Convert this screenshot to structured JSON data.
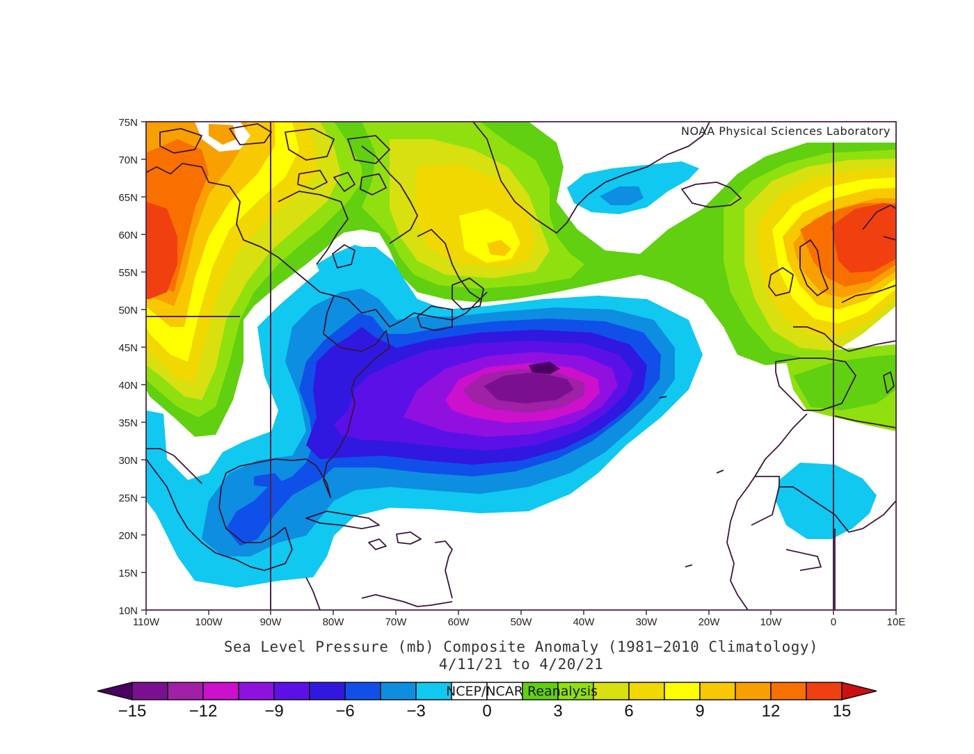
{
  "figure": {
    "credit": "NOAA Physical Sciences Laboratory",
    "title_line1": "Sea Level Pressure (mb) Composite Anomaly (1981−2010 Climatology)",
    "title_line2": "4/11/21  to 4/20/21",
    "colorbar_title": "NCEP/NCAR Reanalysis"
  },
  "axes": {
    "lat_labels": [
      "75N",
      "70N",
      "65N",
      "60N",
      "55N",
      "50N",
      "45N",
      "40N",
      "35N",
      "30N",
      "25N",
      "20N",
      "15N",
      "10N"
    ],
    "lon_labels": [
      "110W",
      "100W",
      "90W",
      "80W",
      "70W",
      "60W",
      "50W",
      "40W",
      "30W",
      "20W",
      "10W",
      "0",
      "10E"
    ]
  },
  "colorbar": {
    "labels": [
      "−15",
      "−12",
      "−9",
      "−6",
      "−3",
      "0",
      "3",
      "6",
      "9",
      "12",
      "15"
    ],
    "colors": [
      "#4a0060",
      "#7a1090",
      "#a020a8",
      "#cc10cc",
      "#9010e0",
      "#5c10e8",
      "#3018e0",
      "#1050e8",
      "#0d8ee0",
      "#10c8f0",
      "#ffffff",
      "#ffffff",
      "#60d010",
      "#90e010",
      "#d8e010",
      "#f0d800",
      "#ffff00",
      "#f8c800",
      "#f8a000",
      "#f87000",
      "#f04010",
      "#cc1010"
    ],
    "min_color": "#4a0060",
    "max_color": "#cc1010"
  },
  "chart_data": {
    "type": "heatmap",
    "title": "Sea Level Pressure (mb) Composite Anomaly (1981−2010 Climatology)",
    "subtitle": "4/11/21  to 4/20/21",
    "source": "NCEP/NCAR Reanalysis",
    "units": "mb",
    "xlim": [
      -110,
      10
    ],
    "ylim": [
      10,
      75
    ],
    "contour_levels": [
      -15,
      -13.5,
      -12,
      -10.5,
      -9,
      -7.5,
      -6,
      -4.5,
      -3,
      -1.5,
      0,
      1.5,
      3,
      4.5,
      6,
      7.5,
      9,
      10.5,
      12,
      13.5,
      15
    ],
    "features": [
      {
        "name": "low center",
        "lon": -47,
        "lat": 42,
        "value": -14
      },
      {
        "name": "high center",
        "lon": 8,
        "lat": 60,
        "value": 13.5
      },
      {
        "name": "high center",
        "lon": -109,
        "lat": 57,
        "value": 13.5
      },
      {
        "name": "secondary high",
        "lon": -50,
        "lat": 57,
        "value": 6
      },
      {
        "name": "weak low",
        "lon": -5,
        "lat": 23,
        "value": -3
      },
      {
        "name": "weak low",
        "lon": -40,
        "lat": 66,
        "value": -4.5
      },
      {
        "name": "gulf low",
        "lon": -95,
        "lat": 22,
        "value": -6
      }
    ]
  }
}
